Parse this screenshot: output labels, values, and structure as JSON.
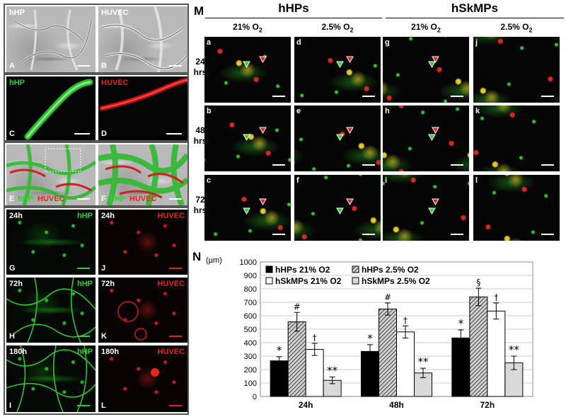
{
  "left_panels": {
    "A": {
      "letter": "A",
      "name": "hHP"
    },
    "B": {
      "letter": "B",
      "name": "HUVEC"
    },
    "C": {
      "letter": "C",
      "name": "hHP"
    },
    "D": {
      "letter": "D",
      "name": "HUVEC"
    },
    "E": {
      "letter": "E",
      "name1": "hHP",
      "name2": "HUVEC"
    },
    "F": {
      "letter": "F",
      "name1": "hHP",
      "name2": "HUVEC"
    },
    "G": {
      "letter": "G",
      "time": "24h",
      "name": "hHP"
    },
    "H": {
      "letter": "H",
      "time": "72h",
      "name": "hHP"
    },
    "I": {
      "letter": "I",
      "time": "180h",
      "name": "hHP"
    },
    "J": {
      "letter": "J",
      "time": "24h",
      "name": "HUVEC"
    },
    "K": {
      "letter": "K",
      "time": "72h",
      "name": "HUVEC"
    },
    "L": {
      "letter": "L",
      "time": "180h",
      "name": "HUVEC"
    }
  },
  "panel_m": {
    "letter": "M",
    "groups": [
      "hHPs",
      "hSkMPs"
    ],
    "conditions": [
      "21% O",
      "2.5% O",
      "21% O",
      "2.5% O"
    ],
    "subscript": "2",
    "rows": [
      [
        "24",
        "hrs"
      ],
      [
        "48",
        "hrs"
      ],
      [
        "72",
        "hrs"
      ]
    ],
    "cells": [
      [
        "a",
        "d",
        "g",
        "j"
      ],
      [
        "b",
        "e",
        "h",
        "k"
      ],
      [
        "c",
        "f",
        "i",
        "l"
      ]
    ]
  },
  "panel_n": {
    "letter": "N",
    "unit": "(µm)"
  },
  "colors": {
    "green": "#2fd12f",
    "red": "#e8241c",
    "white": "#ffffff"
  },
  "chart_data": {
    "type": "bar",
    "categories": [
      "24h",
      "48h",
      "72h"
    ],
    "ylim": [
      0,
      1000
    ],
    "yticks": [
      "0",
      "100",
      "200",
      "300",
      "400",
      "500",
      "600",
      "700",
      "800",
      "900",
      "1000"
    ],
    "ylabel": "(µm)",
    "legend": "top-left",
    "grid": true,
    "series": [
      {
        "name": "hHPs 21% O2",
        "values": [
          265,
          335,
          435
        ],
        "errors": [
          30,
          50,
          60
        ],
        "marker": "*"
      },
      {
        "name": "hHPs 2.5% O2",
        "values": [
          555,
          650,
          740
        ],
        "errors": [
          70,
          45,
          65
        ],
        "marker": "#"
      },
      {
        "name": "hSkMPs 21% O2",
        "values": [
          350,
          480,
          635
        ],
        "errors": [
          45,
          45,
          60
        ],
        "marker": "†"
      },
      {
        "name": "hSkMPs 2.5% O2",
        "values": [
          120,
          175,
          250
        ],
        "errors": [
          25,
          35,
          50
        ],
        "marker": "**"
      }
    ],
    "marker_72_hHPs25": "§"
  }
}
